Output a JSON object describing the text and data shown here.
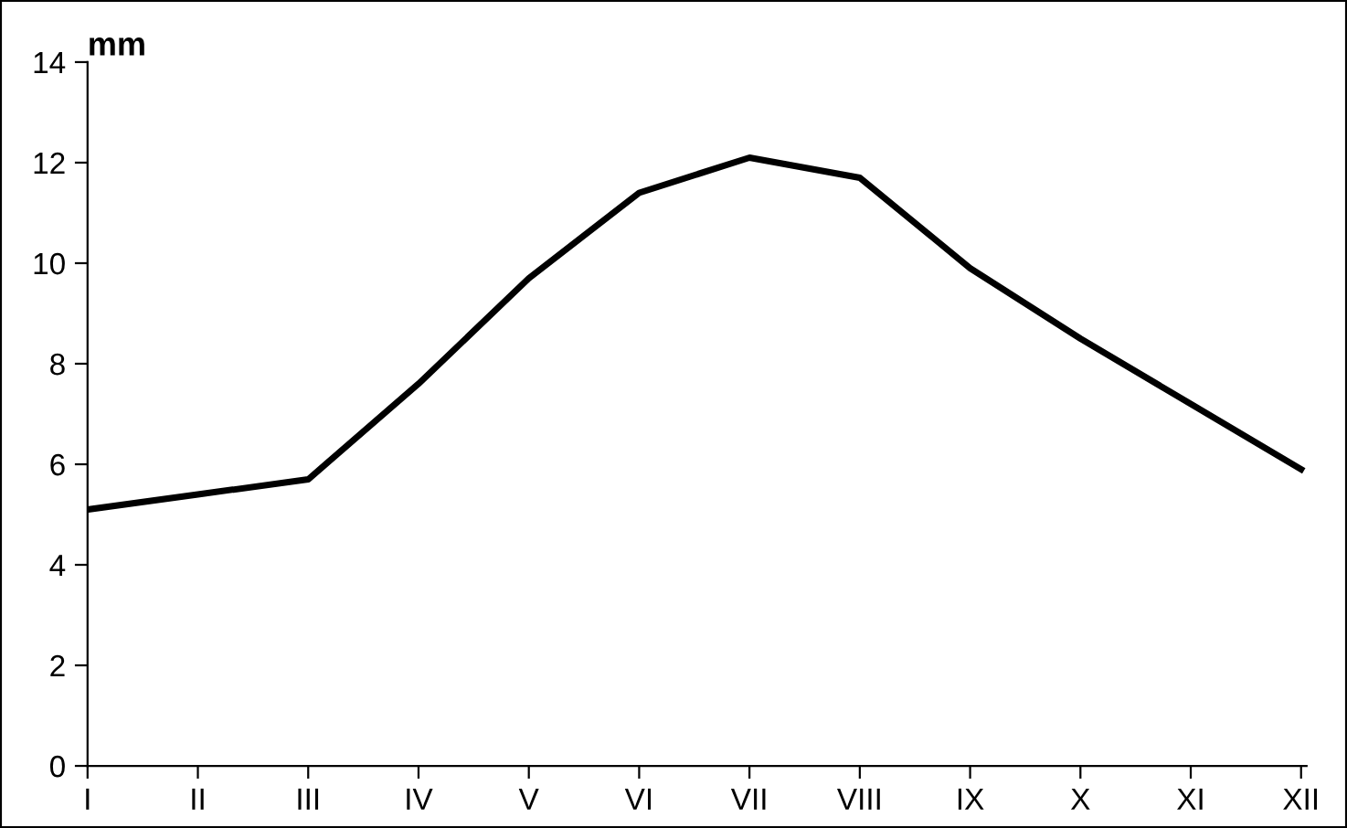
{
  "chart_data": {
    "type": "line",
    "ylabel": "mm",
    "categories": [
      "I",
      "II",
      "III",
      "IV",
      "V",
      "VI",
      "VII",
      "VIII",
      "IX",
      "X",
      "XI",
      "XII"
    ],
    "series": [
      {
        "color": "#000000",
        "values": [
          5.1,
          5.4,
          5.7,
          7.6,
          9.7,
          11.4,
          12.1,
          11.7,
          9.9,
          8.5,
          7.2,
          5.9
        ]
      }
    ],
    "ylim": [
      0,
      14
    ],
    "yticks": [
      0,
      2,
      4,
      6,
      8,
      10,
      12,
      14
    ],
    "grid": false,
    "legend": false,
    "marker": "none",
    "line_style": "solid"
  }
}
